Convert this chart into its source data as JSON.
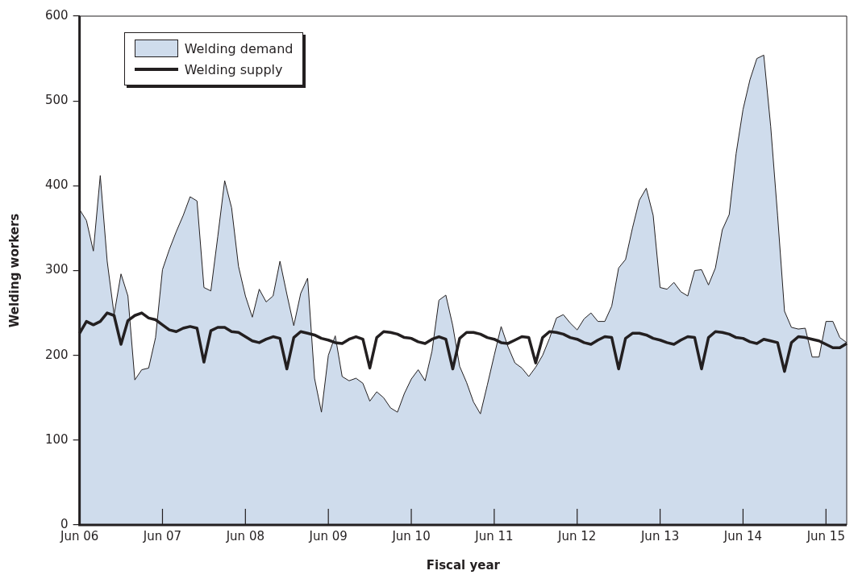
{
  "chart_data": {
    "type": "line",
    "xlabel": "Fiscal year",
    "ylabel": "Welding workers",
    "categories": [
      "Jun 06",
      null,
      null,
      null,
      null,
      null,
      null,
      null,
      null,
      null,
      null,
      null,
      "Jun 07",
      null,
      null,
      null,
      null,
      null,
      null,
      null,
      null,
      null,
      null,
      null,
      "Jun 08",
      null,
      null,
      null,
      null,
      null,
      null,
      null,
      null,
      null,
      null,
      null,
      "Jun 09",
      null,
      null,
      null,
      null,
      null,
      null,
      null,
      null,
      null,
      null,
      null,
      "Jun 10",
      null,
      null,
      null,
      null,
      null,
      null,
      null,
      null,
      null,
      null,
      null,
      "Jun 11",
      null,
      null,
      null,
      null,
      null,
      null,
      null,
      null,
      null,
      null,
      null,
      "Jun 12",
      null,
      null,
      null,
      null,
      null,
      null,
      null,
      null,
      null,
      null,
      null,
      "Jun 13",
      null,
      null,
      null,
      null,
      null,
      null,
      null,
      null,
      null,
      null,
      null,
      "Jun 14",
      null,
      null,
      null,
      null,
      null,
      null,
      null,
      null,
      null,
      null,
      null,
      "Jun 15",
      null,
      null,
      null
    ],
    "series": [
      {
        "name": "Welding demand",
        "type": "area",
        "color": "#cfdcec",
        "values": [
          372,
          359,
          323,
          412,
          311,
          248,
          296,
          270,
          171,
          183,
          185,
          221,
          301,
          325,
          346,
          365,
          387,
          382,
          280,
          276,
          340,
          406,
          374,
          305,
          270,
          245,
          278,
          263,
          270,
          311,
          272,
          235,
          273,
          291,
          173,
          133,
          200,
          223,
          175,
          170,
          173,
          167,
          146,
          157,
          150,
          138,
          133,
          155,
          172,
          183,
          170,
          205,
          265,
          271,
          235,
          187,
          168,
          145,
          131,
          165,
          200,
          234,
          210,
          191,
          185,
          175,
          186,
          200,
          220,
          244,
          248,
          238,
          230,
          243,
          250,
          240,
          240,
          258,
          303,
          313,
          350,
          383,
          397,
          365,
          280,
          278,
          286,
          275,
          270,
          300,
          301,
          283,
          303,
          348,
          366,
          438,
          490,
          525,
          550,
          554,
          470,
          365,
          252,
          233,
          231,
          232,
          198,
          198,
          240,
          240,
          221,
          215
        ]
      },
      {
        "name": "Welding supply",
        "type": "line",
        "color": "#231f20",
        "values": [
          226,
          240,
          236,
          240,
          250,
          247,
          213,
          241,
          247,
          250,
          244,
          242,
          236,
          230,
          228,
          232,
          234,
          232,
          192,
          229,
          233,
          233,
          228,
          227,
          222,
          217,
          215,
          219,
          222,
          220,
          184,
          221,
          228,
          226,
          224,
          220,
          218,
          215,
          214,
          219,
          222,
          219,
          185,
          221,
          228,
          227,
          225,
          221,
          220,
          216,
          214,
          219,
          222,
          219,
          184,
          220,
          227,
          227,
          225,
          221,
          219,
          215,
          214,
          218,
          222,
          221,
          191,
          221,
          228,
          227,
          225,
          221,
          219,
          215,
          213,
          218,
          222,
          221,
          184,
          220,
          226,
          226,
          224,
          220,
          218,
          215,
          213,
          218,
          222,
          221,
          184,
          221,
          228,
          227,
          225,
          221,
          220,
          216,
          214,
          219,
          217,
          215,
          181,
          215,
          222,
          221,
          219,
          217,
          213,
          209,
          209,
          214
        ]
      }
    ],
    "ylim": [
      0,
      600
    ],
    "yticks": [
      0,
      100,
      200,
      300,
      400,
      500,
      600
    ],
    "grid": false,
    "legend": "top left",
    "marker": "none"
  }
}
